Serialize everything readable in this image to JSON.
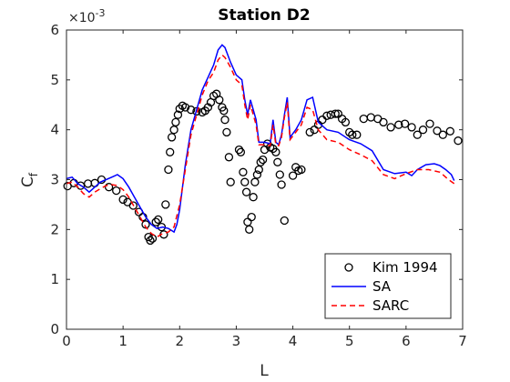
{
  "chart_data": {
    "type": "line",
    "title": "Station D2",
    "xlabel": "L",
    "ylabel": "C",
    "ylabel_sub": "f",
    "y_multiplier_base": "×10",
    "y_multiplier_exp": "-3",
    "xlim": [
      0,
      7
    ],
    "ylim": [
      0,
      6
    ],
    "xticks": [
      "0",
      "1",
      "2",
      "3",
      "4",
      "5",
      "6",
      "7"
    ],
    "yticks": [
      "0",
      "1",
      "2",
      "3",
      "4",
      "5",
      "6"
    ],
    "grid": false,
    "legend_position": "bottom-right",
    "series": [
      {
        "name": "Kim 1994",
        "style": "markers",
        "color": "#000000",
        "points": [
          [
            0.02,
            2.87
          ],
          [
            0.13,
            2.93
          ],
          [
            0.25,
            2.88
          ],
          [
            0.38,
            2.92
          ],
          [
            0.5,
            2.93
          ],
          [
            0.62,
            3.0
          ],
          [
            0.75,
            2.85
          ],
          [
            0.88,
            2.78
          ],
          [
            1.0,
            2.6
          ],
          [
            1.08,
            2.55
          ],
          [
            1.18,
            2.48
          ],
          [
            1.28,
            2.35
          ],
          [
            1.35,
            2.25
          ],
          [
            1.4,
            2.1
          ],
          [
            1.45,
            1.85
          ],
          [
            1.48,
            1.78
          ],
          [
            1.52,
            1.82
          ],
          [
            1.58,
            2.15
          ],
          [
            1.62,
            2.2
          ],
          [
            1.68,
            2.05
          ],
          [
            1.72,
            1.9
          ],
          [
            1.75,
            2.5
          ],
          [
            1.8,
            3.2
          ],
          [
            1.83,
            3.55
          ],
          [
            1.86,
            3.85
          ],
          [
            1.9,
            4.0
          ],
          [
            1.93,
            4.15
          ],
          [
            1.97,
            4.3
          ],
          [
            2.0,
            4.42
          ],
          [
            2.05,
            4.48
          ],
          [
            2.1,
            4.45
          ],
          [
            2.2,
            4.4
          ],
          [
            2.3,
            4.37
          ],
          [
            2.4,
            4.35
          ],
          [
            2.45,
            4.38
          ],
          [
            2.5,
            4.45
          ],
          [
            2.55,
            4.55
          ],
          [
            2.6,
            4.68
          ],
          [
            2.65,
            4.72
          ],
          [
            2.7,
            4.6
          ],
          [
            2.75,
            4.45
          ],
          [
            2.78,
            4.38
          ],
          [
            2.8,
            4.2
          ],
          [
            2.83,
            3.95
          ],
          [
            2.87,
            3.45
          ],
          [
            2.9,
            2.95
          ],
          [
            3.05,
            3.6
          ],
          [
            3.08,
            3.55
          ],
          [
            3.12,
            3.15
          ],
          [
            3.15,
            2.95
          ],
          [
            3.18,
            2.75
          ],
          [
            3.2,
            2.15
          ],
          [
            3.23,
            2.0
          ],
          [
            3.27,
            2.25
          ],
          [
            3.3,
            2.65
          ],
          [
            3.33,
            2.95
          ],
          [
            3.37,
            3.1
          ],
          [
            3.4,
            3.2
          ],
          [
            3.43,
            3.35
          ],
          [
            3.47,
            3.4
          ],
          [
            3.5,
            3.6
          ],
          [
            3.55,
            3.72
          ],
          [
            3.6,
            3.65
          ],
          [
            3.65,
            3.62
          ],
          [
            3.7,
            3.55
          ],
          [
            3.73,
            3.35
          ],
          [
            3.77,
            3.1
          ],
          [
            3.8,
            2.9
          ],
          [
            3.85,
            2.18
          ],
          [
            4.0,
            3.08
          ],
          [
            4.05,
            3.25
          ],
          [
            4.1,
            3.18
          ],
          [
            4.15,
            3.2
          ],
          [
            4.3,
            3.95
          ],
          [
            4.38,
            4.0
          ],
          [
            4.45,
            4.1
          ],
          [
            4.52,
            4.2
          ],
          [
            4.6,
            4.28
          ],
          [
            4.67,
            4.3
          ],
          [
            4.75,
            4.32
          ],
          [
            4.8,
            4.32
          ],
          [
            4.87,
            4.22
          ],
          [
            4.93,
            4.15
          ],
          [
            5.0,
            3.95
          ],
          [
            5.05,
            3.9
          ],
          [
            5.13,
            3.9
          ],
          [
            5.25,
            4.22
          ],
          [
            5.38,
            4.25
          ],
          [
            5.5,
            4.22
          ],
          [
            5.6,
            4.15
          ],
          [
            5.73,
            4.05
          ],
          [
            5.87,
            4.1
          ],
          [
            5.98,
            4.12
          ],
          [
            6.1,
            4.05
          ],
          [
            6.2,
            3.9
          ],
          [
            6.3,
            4.0
          ],
          [
            6.42,
            4.12
          ],
          [
            6.55,
            3.98
          ],
          [
            6.65,
            3.9
          ],
          [
            6.78,
            3.97
          ],
          [
            6.92,
            3.78
          ]
        ]
      },
      {
        "name": "SA",
        "style": "solid",
        "color": "#0000ff",
        "points": [
          [
            0.0,
            3.02
          ],
          [
            0.1,
            3.05
          ],
          [
            0.2,
            2.92
          ],
          [
            0.3,
            2.85
          ],
          [
            0.4,
            2.75
          ],
          [
            0.5,
            2.85
          ],
          [
            0.6,
            2.95
          ],
          [
            0.7,
            3.0
          ],
          [
            0.8,
            3.05
          ],
          [
            0.9,
            3.1
          ],
          [
            1.0,
            3.02
          ],
          [
            1.1,
            2.85
          ],
          [
            1.2,
            2.65
          ],
          [
            1.3,
            2.45
          ],
          [
            1.4,
            2.25
          ],
          [
            1.5,
            2.1
          ],
          [
            1.6,
            2.02
          ],
          [
            1.7,
            2.05
          ],
          [
            1.8,
            2.02
          ],
          [
            1.9,
            1.95
          ],
          [
            1.95,
            2.1
          ],
          [
            2.0,
            2.4
          ],
          [
            2.1,
            3.3
          ],
          [
            2.2,
            4.0
          ],
          [
            2.3,
            4.4
          ],
          [
            2.4,
            4.8
          ],
          [
            2.5,
            5.05
          ],
          [
            2.6,
            5.3
          ],
          [
            2.68,
            5.6
          ],
          [
            2.75,
            5.7
          ],
          [
            2.8,
            5.65
          ],
          [
            2.9,
            5.35
          ],
          [
            3.0,
            5.1
          ],
          [
            3.1,
            5.0
          ],
          [
            3.15,
            4.6
          ],
          [
            3.2,
            4.3
          ],
          [
            3.25,
            4.6
          ],
          [
            3.3,
            4.4
          ],
          [
            3.35,
            4.2
          ],
          [
            3.4,
            3.75
          ],
          [
            3.5,
            3.75
          ],
          [
            3.6,
            3.72
          ],
          [
            3.65,
            4.2
          ],
          [
            3.7,
            3.75
          ],
          [
            3.75,
            3.7
          ],
          [
            3.8,
            3.9
          ],
          [
            3.85,
            4.3
          ],
          [
            3.9,
            4.65
          ],
          [
            3.95,
            3.85
          ],
          [
            4.05,
            4.0
          ],
          [
            4.15,
            4.2
          ],
          [
            4.25,
            4.6
          ],
          [
            4.35,
            4.65
          ],
          [
            4.45,
            4.15
          ],
          [
            4.6,
            4.0
          ],
          [
            4.8,
            3.95
          ],
          [
            5.0,
            3.8
          ],
          [
            5.2,
            3.72
          ],
          [
            5.4,
            3.58
          ],
          [
            5.6,
            3.2
          ],
          [
            5.8,
            3.12
          ],
          [
            6.0,
            3.15
          ],
          [
            6.1,
            3.08
          ],
          [
            6.2,
            3.2
          ],
          [
            6.35,
            3.3
          ],
          [
            6.5,
            3.32
          ],
          [
            6.6,
            3.28
          ],
          [
            6.7,
            3.2
          ],
          [
            6.8,
            3.1
          ],
          [
            6.85,
            2.98
          ]
        ]
      },
      {
        "name": "SARC",
        "style": "dashed",
        "color": "#ff0000",
        "points": [
          [
            0.0,
            2.92
          ],
          [
            0.1,
            2.95
          ],
          [
            0.2,
            2.85
          ],
          [
            0.3,
            2.72
          ],
          [
            0.4,
            2.65
          ],
          [
            0.5,
            2.75
          ],
          [
            0.6,
            2.82
          ],
          [
            0.7,
            2.88
          ],
          [
            0.8,
            2.9
          ],
          [
            0.9,
            2.88
          ],
          [
            1.0,
            2.8
          ],
          [
            1.1,
            2.65
          ],
          [
            1.2,
            2.45
          ],
          [
            1.3,
            2.25
          ],
          [
            1.4,
            2.05
          ],
          [
            1.5,
            1.92
          ],
          [
            1.6,
            1.85
          ],
          [
            1.7,
            1.92
          ],
          [
            1.8,
            1.95
          ],
          [
            1.9,
            2.05
          ],
          [
            2.0,
            2.5
          ],
          [
            2.1,
            3.2
          ],
          [
            2.2,
            3.9
          ],
          [
            2.3,
            4.3
          ],
          [
            2.4,
            4.7
          ],
          [
            2.5,
            4.98
          ],
          [
            2.6,
            5.15
          ],
          [
            2.68,
            5.4
          ],
          [
            2.75,
            5.5
          ],
          [
            2.8,
            5.45
          ],
          [
            2.9,
            5.25
          ],
          [
            3.0,
            5.0
          ],
          [
            3.1,
            4.9
          ],
          [
            3.15,
            4.5
          ],
          [
            3.2,
            4.2
          ],
          [
            3.25,
            4.5
          ],
          [
            3.3,
            4.3
          ],
          [
            3.35,
            4.1
          ],
          [
            3.4,
            3.7
          ],
          [
            3.5,
            3.7
          ],
          [
            3.6,
            3.68
          ],
          [
            3.65,
            4.1
          ],
          [
            3.7,
            3.7
          ],
          [
            3.75,
            3.68
          ],
          [
            3.8,
            3.85
          ],
          [
            3.85,
            4.25
          ],
          [
            3.9,
            4.55
          ],
          [
            3.95,
            3.8
          ],
          [
            4.05,
            3.95
          ],
          [
            4.15,
            4.1
          ],
          [
            4.25,
            4.45
          ],
          [
            4.35,
            4.4
          ],
          [
            4.45,
            4.0
          ],
          [
            4.6,
            3.8
          ],
          [
            4.8,
            3.75
          ],
          [
            5.0,
            3.6
          ],
          [
            5.2,
            3.5
          ],
          [
            5.4,
            3.38
          ],
          [
            5.6,
            3.1
          ],
          [
            5.8,
            3.02
          ],
          [
            6.0,
            3.12
          ],
          [
            6.2,
            3.2
          ],
          [
            6.4,
            3.2
          ],
          [
            6.6,
            3.15
          ],
          [
            6.75,
            3.0
          ],
          [
            6.85,
            2.92
          ]
        ]
      }
    ]
  }
}
